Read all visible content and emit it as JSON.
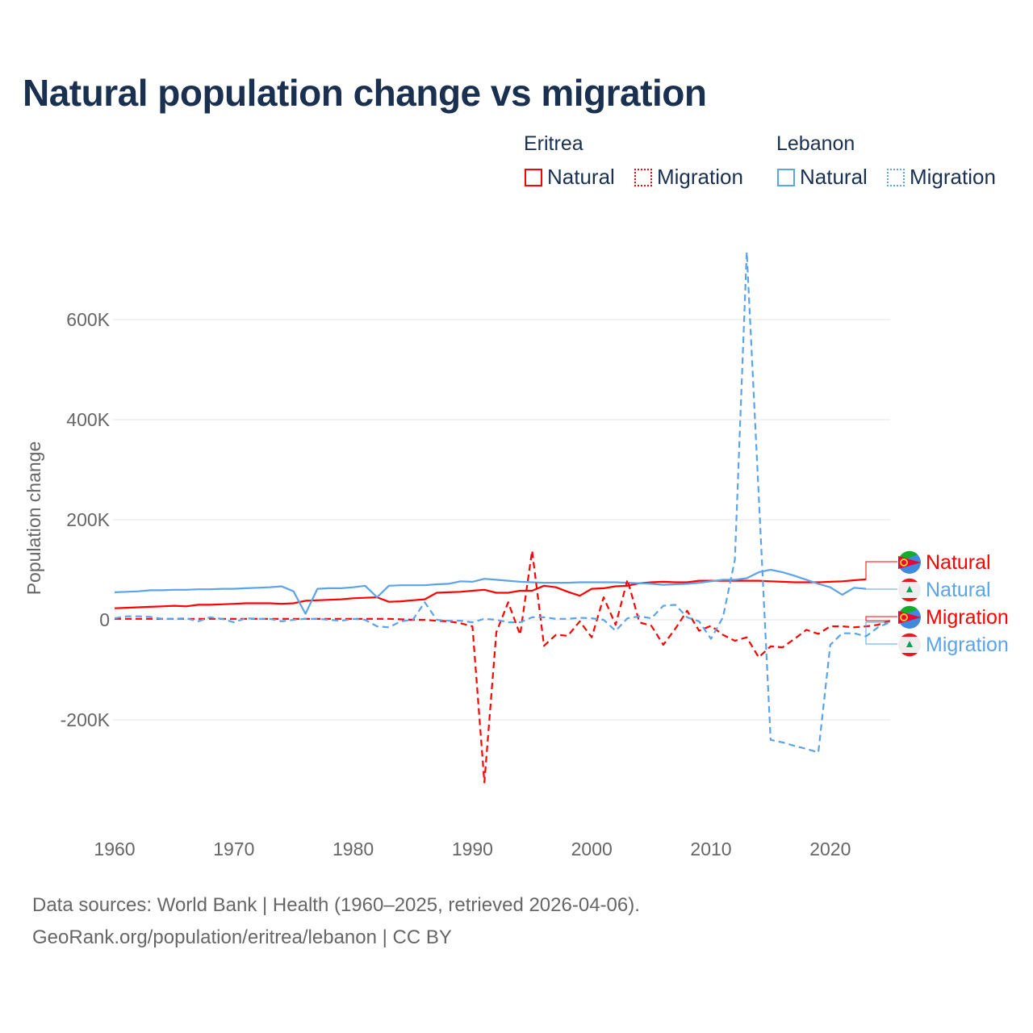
{
  "title": "Natural population change vs migration",
  "legend": {
    "groups": [
      {
        "name": "Eritrea",
        "items": [
          "Natural",
          "Migration"
        ],
        "color": "#ff0000"
      },
      {
        "name": "Lebanon",
        "items": [
          "Natural",
          "Migration"
        ],
        "color": "#5ba3ea"
      }
    ]
  },
  "footer": {
    "line1": "Data sources: World Bank | Health (1960–2025, retrieved 2026-04-06).",
    "line2": "GeoRank.org/population/eritrea/lebanon | CC BY"
  },
  "chart_data": {
    "type": "line",
    "title": "Natural population change vs migration",
    "xlabel": "",
    "ylabel": "Population change",
    "xlim": [
      1960,
      2025
    ],
    "ylim": [
      -350000,
      750000
    ],
    "x_ticks": [
      1960,
      1970,
      1980,
      1990,
      2000,
      2010,
      2020
    ],
    "x_tick_labels": [
      "1960",
      "1970",
      "1980",
      "1990",
      "2000",
      "2010",
      "2020"
    ],
    "y_ticks": [
      -200000,
      0,
      200000,
      400000,
      600000
    ],
    "y_tick_labels": [
      "-200K",
      "0",
      "200K",
      "400K",
      "600K"
    ],
    "grid": true,
    "legend_position": "top-right",
    "series": [
      {
        "name": "Eritrea Natural",
        "label": "Natural",
        "color": "#ff0000",
        "dash": false,
        "start": 1960,
        "values": [
          23,
          24,
          25,
          26,
          27,
          28,
          27,
          30,
          30,
          31,
          32,
          33,
          33,
          33,
          32,
          33,
          38,
          39,
          40,
          41,
          43,
          44,
          45,
          36,
          37,
          39,
          41,
          54,
          55,
          56,
          58,
          60,
          54,
          54,
          58,
          58,
          68,
          65,
          56,
          48,
          62,
          63,
          67,
          68,
          73,
          75,
          76,
          75,
          75,
          78,
          78,
          78,
          78,
          78,
          78,
          77,
          76,
          75,
          75,
          75,
          76,
          77,
          79,
          81
        ]
      },
      {
        "name": "Lebanon Natural",
        "label": "Natural",
        "color": "#5ba3ea",
        "dash": false,
        "start": 1960,
        "values": [
          55,
          56,
          57,
          59,
          59,
          60,
          60,
          61,
          61,
          62,
          62,
          63,
          64,
          65,
          67,
          57,
          12,
          62,
          63,
          63,
          65,
          68,
          45,
          68,
          69,
          69,
          69,
          71,
          72,
          77,
          76,
          82,
          80,
          78,
          76,
          75,
          74,
          74,
          74,
          75,
          75,
          75,
          75,
          74,
          73,
          72,
          70,
          71,
          72,
          74,
          77,
          80,
          80,
          83,
          95,
          100,
          95,
          88,
          80,
          72,
          65,
          50,
          64,
          62
        ]
      },
      {
        "name": "Eritrea Migration",
        "label": "Migration",
        "color": "#ff0000",
        "dash": true,
        "start": 1960,
        "values": [
          2,
          2,
          2,
          2,
          2,
          2,
          2,
          2,
          2,
          2,
          2,
          2,
          2,
          2,
          2,
          2,
          2,
          2,
          2,
          2,
          2,
          2,
          2,
          2,
          1,
          0,
          0,
          -2,
          -3,
          -7,
          -13,
          -325,
          -25,
          35,
          -30,
          138,
          -52,
          -30,
          -32,
          -3,
          -35,
          45,
          -10,
          80,
          -5,
          -12,
          -50,
          -18,
          18,
          -22,
          -12,
          -30,
          -42,
          -35,
          -75,
          -53,
          -55,
          -38,
          -20,
          -28,
          -13,
          -13,
          -15,
          -13,
          -10,
          -2
        ]
      },
      {
        "name": "Lebanon Migration",
        "label": "Migration",
        "color": "#5ba3ea",
        "dash": true,
        "start": 1960,
        "values": [
          3,
          7,
          7,
          6,
          2,
          2,
          3,
          -3,
          5,
          2,
          -5,
          3,
          2,
          2,
          -3,
          0,
          2,
          2,
          0,
          -2,
          2,
          0,
          -13,
          -15,
          -3,
          0,
          35,
          0,
          -2,
          -2,
          -5,
          2,
          0,
          -5,
          -5,
          5,
          5,
          2,
          2,
          4,
          3,
          0,
          -22,
          3,
          7,
          3,
          28,
          30,
          5,
          -3,
          -38,
          5,
          120,
          735,
          250,
          -240,
          -245,
          -252,
          -258,
          -265,
          -50,
          -27,
          -27,
          -33,
          -15,
          -5
        ]
      }
    ],
    "value_unit": "thousands"
  }
}
